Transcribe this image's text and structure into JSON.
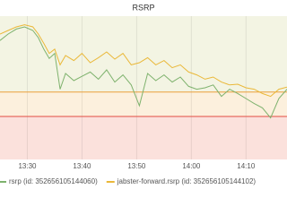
{
  "chart_data": {
    "type": "line",
    "title": "RSRP",
    "x": [
      805,
      806.5,
      808,
      809.5,
      811,
      812,
      813,
      814,
      815,
      816,
      817,
      818.5,
      820,
      821.5,
      823,
      824.5,
      826,
      827.5,
      829,
      830.5,
      832,
      833.5,
      835,
      836.5,
      838,
      839.5,
      841,
      842.5,
      844,
      845.5,
      847,
      848.5,
      850,
      851.5,
      853,
      854.5,
      856,
      857.5
    ],
    "series": [
      {
        "name": "rsrp (id: 352656105144060)",
        "color": "#7eb26d",
        "values": [
          83,
          87.5,
          91,
          92.5,
          90,
          85,
          77,
          70.5,
          74,
          49,
          60,
          55,
          58,
          61,
          56,
          62.5,
          54,
          59,
          52,
          37.5,
          60,
          55,
          59,
          54,
          57.5,
          51,
          49,
          50,
          52,
          44,
          49,
          46,
          42.5,
          39,
          36,
          29,
          42.5,
          49
        ]
      },
      {
        "name": "jabster-forward.rsrp (id: 352656105144102)",
        "color": "#eab839",
        "values": [
          87.5,
          90,
          92.5,
          94,
          92.5,
          87.5,
          81,
          74,
          77,
          66,
          72.5,
          69,
          74,
          67.5,
          71,
          75,
          70,
          74,
          66,
          67.5,
          71,
          66,
          69,
          64,
          66,
          61,
          59,
          56,
          57.5,
          54,
          52,
          52.5,
          50,
          49,
          46,
          44,
          49,
          50.5
        ]
      }
    ],
    "xlim": [
      805,
      857.5
    ],
    "ylim": [
      0,
      100
    ],
    "xticks": [
      {
        "value": 810,
        "label": "13:30"
      },
      {
        "value": 820,
        "label": "13:40"
      },
      {
        "value": 830,
        "label": "13:50"
      },
      {
        "value": 840,
        "label": "14:00"
      },
      {
        "value": 850,
        "label": "14:10"
      }
    ],
    "thresholds": [
      {
        "value": 47,
        "color": "#eb9e3b",
        "fill": "#fcf0dd"
      },
      {
        "value": 30,
        "color": "#e24d42",
        "fill": "#fbe1dc"
      }
    ],
    "upper_fill": "#f3f4e3",
    "grid": true
  }
}
